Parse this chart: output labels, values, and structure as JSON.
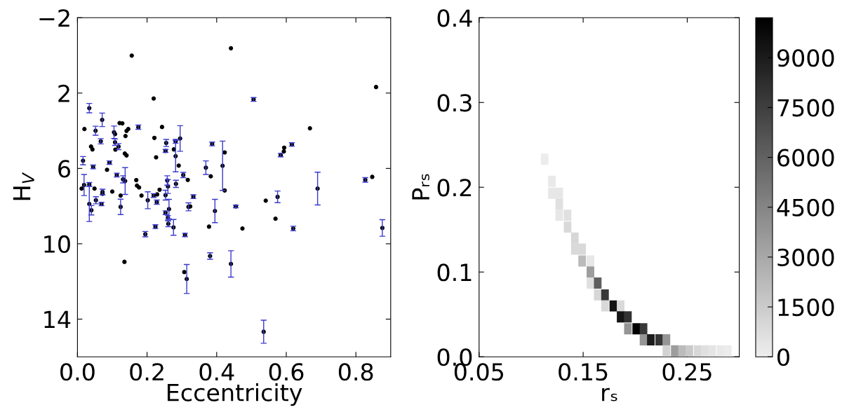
{
  "chart_data": [
    {
      "type": "scatter",
      "xlabel": "Eccentricity",
      "ylabel": "H$_{V}$",
      "xlim": [
        0,
        0.9
      ],
      "xticks": [
        {
          "value": 0,
          "label": "0.0"
        },
        {
          "value": 0.2,
          "label": "0.2"
        },
        {
          "value": 0.4,
          "label": "0.4"
        },
        {
          "value": 0.6,
          "label": "0.6"
        },
        {
          "value": 0.8,
          "label": "0.8"
        }
      ],
      "ylim": [
        16,
        -2
      ],
      "yticks": [
        {
          "value": -2,
          "label": "−2"
        },
        2,
        6,
        10,
        14
      ],
      "marker": "circle",
      "grid": false,
      "legend": false,
      "series": [
        {
          "color": "#000000",
          "x": [
            0.441,
            0.156,
            0.219,
            0.034,
            0.071,
            0.02,
            0.052,
            0.121,
            0.129,
            0.105,
            0.108,
            0.141,
            0.146,
            0.175,
            0.243,
            0.138,
            0.221,
            0.067,
            0.108,
            0.118,
            0.109,
            0.039,
            0.043,
            0.136,
            0.141,
            0.255,
            0.253,
            0.226,
            0.282,
            0.282,
            0.295,
            0.277,
            0.291,
            0.304,
            0.317,
            0.369,
            0.383,
            0.387,
            0.417,
            0.423,
            0.016,
            0.045,
            0.092,
            0.085,
            0.113,
            0.131,
            0.137,
            0.169,
            0.258,
            0.012,
            0.019,
            0.034,
            0.034,
            0.04,
            0.049,
            0.053,
            0.069,
            0.072,
            0.072,
            0.1,
            0.124,
            0.124,
            0.135,
            0.171,
            0.177,
            0.184,
            0.202,
            0.195,
            0.219,
            0.229,
            0.228,
            0.236,
            0.224,
            0.253,
            0.26,
            0.253,
            0.263,
            0.26,
            0.261,
            0.276,
            0.283,
            0.309,
            0.307,
            0.314,
            0.319,
            0.324,
            0.333,
            0.378,
            0.381,
            0.395,
            0.423,
            0.441,
            0.455,
            0.506,
            0.858,
            0.668,
            0.616,
            0.594,
            0.593,
            0.584,
            0.69,
            0.827,
            0.847,
            0.575,
            0.541,
            0.569,
            0.474,
            0.62,
            0.876,
            0.535
          ],
          "values": [
            -0.38,
            0.01,
            2.29,
            2.8,
            3.42,
            3.91,
            4.0,
            3.59,
            3.61,
            4.08,
            4.18,
            4.01,
            3.91,
            3.81,
            3.8,
            4.28,
            4.38,
            4.56,
            4.61,
            4.84,
            5.0,
            4.84,
            4.99,
            5.21,
            5.31,
            4.65,
            5.07,
            5.41,
            5.35,
            4.56,
            4.41,
            4.99,
            5.85,
            6.35,
            6.61,
            5.96,
            6.42,
            4.7,
            5.86,
            5.15,
            5.59,
            5.92,
            5.69,
            6.07,
            6.35,
            6.58,
            6.67,
            6.62,
            6.64,
            7.07,
            6.88,
            6.85,
            7.89,
            8.22,
            7.07,
            7.69,
            7.89,
            7.25,
            7.35,
            7.23,
            7.44,
            8.04,
            10.96,
            6.91,
            7.01,
            7.44,
            7.69,
            9.49,
            7.44,
            7.38,
            7.79,
            7.13,
            9.09,
            7.42,
            6.96,
            8.35,
            8.16,
            8.62,
            8.94,
            9.13,
            6.82,
            9.53,
            11.5,
            11.87,
            8.04,
            8.02,
            7.5,
            9.09,
            10.65,
            8.26,
            7.17,
            11.07,
            8.02,
            2.34,
            1.68,
            3.87,
            4.73,
            4.9,
            5.1,
            5.29,
            7.07,
            6.61,
            6.45,
            7.51,
            7.71,
            8.67,
            9.19,
            9.19,
            9.16,
            14.67
          ],
          "errors": [
            null,
            null,
            null,
            0.25,
            0.36,
            null,
            0.24,
            null,
            null,
            0.33,
            null,
            null,
            null,
            0.11,
            null,
            null,
            null,
            0.14,
            0.17,
            0.16,
            null,
            null,
            null,
            null,
            null,
            0.19,
            0.08,
            null,
            0.83,
            0.1,
            0.68,
            null,
            null,
            0.14,
            null,
            0.36,
            null,
            0.1,
            1.31,
            null,
            0.22,
            0.1,
            0.09,
            null,
            0.1,
            0.19,
            0.71,
            null,
            0.25,
            null,
            0.56,
            0.1,
            0.93,
            0.25,
            null,
            0.19,
            0.09,
            0.15,
            null,
            null,
            null,
            0.41,
            null,
            null,
            null,
            null,
            0.45,
            0.14,
            0.1,
            null,
            0.11,
            null,
            0.1,
            0.26,
            0.37,
            0.1,
            0.52,
            0.12,
            0.15,
            0.42,
            0.19,
            0.09,
            null,
            0.77,
            0.21,
            null,
            0.1,
            null,
            0.17,
            0.62,
            null,
            0.7,
            0.07,
            0.1,
            null,
            null,
            0.09,
            null,
            null,
            0.09,
            0.87,
            0.12,
            null,
            0.31,
            null,
            null,
            null,
            0.12,
            0.44,
            0.61
          ]
        }
      ]
    },
    {
      "type": "scatter",
      "xlabel": "rₛ",
      "ylabel": "Pᵣₛ",
      "marker": "square",
      "grid": false,
      "xlim": [
        0.05,
        0.3
      ],
      "xticks": [
        0.05,
        0.15,
        0.25
      ],
      "ylim": [
        0,
        0.4
      ],
      "yticks": [
        {
          "value": 0,
          "label": "0.0"
        },
        0.1,
        0.2,
        0.3,
        0.4
      ],
      "clim": [
        0,
        10200
      ],
      "cticks": [
        0,
        1500,
        3000,
        4500,
        6000,
        7500,
        9000
      ],
      "series": [
        {
          "x": [
            0.113,
            0.12,
            0.12,
            0.127,
            0.127,
            0.127,
            0.135,
            0.135,
            0.142,
            0.142,
            0.149,
            0.149,
            0.157,
            0.157,
            0.157,
            0.164,
            0.164,
            0.171,
            0.171,
            0.179,
            0.186,
            0.186,
            0.193,
            0.193,
            0.201,
            0.208,
            0.208,
            0.215,
            0.223,
            0.23,
            0.23,
            0.238,
            0.245,
            0.252,
            0.26,
            0.267,
            0.274,
            0.282,
            0.289
          ],
          "values": [
            0.233,
            0.207,
            0.193,
            0.193,
            0.18,
            0.167,
            0.167,
            0.153,
            0.14,
            0.127,
            0.127,
            0.113,
            0.113,
            0.1,
            0.087,
            0.087,
            0.073,
            0.073,
            0.06,
            0.06,
            0.06,
            0.047,
            0.047,
            0.033,
            0.033,
            0.033,
            0.02,
            0.02,
            0.02,
            0.02,
            0.007,
            0.007,
            0.007,
            0.007,
            0.007,
            0.007,
            0.007,
            0.007,
            0.007
          ],
          "cvalues": [
            100,
            200,
            300,
            300,
            600,
            300,
            600,
            900,
            1000,
            900,
            900,
            2200,
            300,
            3500,
            600,
            6100,
            1000,
            7800,
            900,
            9400,
            900,
            9300,
            8000,
            3800,
            10200,
            7800,
            3800,
            9000,
            7900,
            3800,
            1200,
            3500,
            2200,
            1600,
            1000,
            600,
            400,
            200,
            100
          ]
        }
      ]
    }
  ]
}
